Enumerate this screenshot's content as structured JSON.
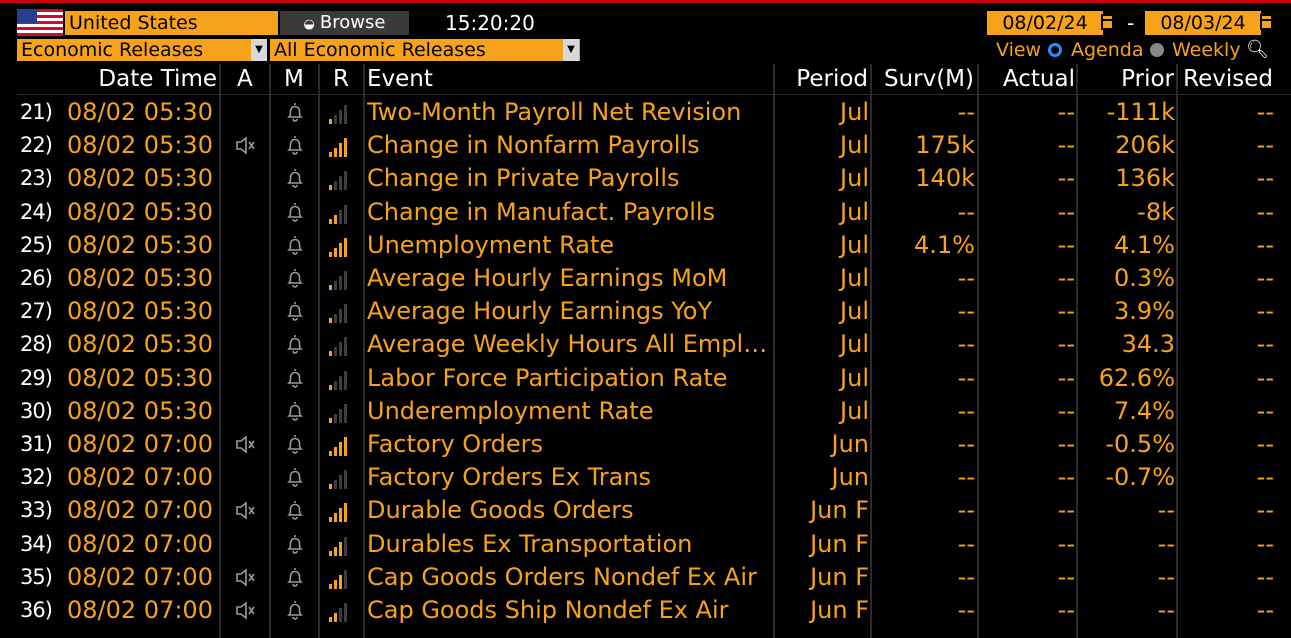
{
  "header": {
    "country": "United States",
    "browse_label": "Browse",
    "clock": "15:20:20",
    "start_date": "08/02/24",
    "range_dash": "-",
    "end_date": "08/03/24",
    "category_dropdown": "Economic Releases",
    "filter_dropdown": "All Economic Releases",
    "view_label": "View",
    "view_options": [
      "Agenda",
      "Weekly"
    ],
    "selected_view": "Agenda"
  },
  "columns": {
    "date_time": "Date Time",
    "alert": "A",
    "monitor": "M",
    "relevance": "R",
    "event": "Event",
    "period": "Period",
    "survey": "Surv(M)",
    "actual": "Actual",
    "prior": "Prior",
    "revised": "Revised"
  },
  "colors": {
    "accent": "#f7a21b",
    "background": "#000000",
    "selected_radio": "#2d8cff"
  },
  "rows": [
    {
      "num": "21)",
      "dt": "08/02 05:30",
      "speaker": false,
      "rel": 1,
      "event": "Two-Month Payroll Net Revision",
      "period": "Jul",
      "survey": "--",
      "actual": "--",
      "prior": "-111k",
      "revised": "--"
    },
    {
      "num": "22)",
      "dt": "08/02 05:30",
      "speaker": true,
      "rel": 4,
      "event": "Change in Nonfarm Payrolls",
      "period": "Jul",
      "survey": "175k",
      "actual": "--",
      "prior": "206k",
      "revised": "--"
    },
    {
      "num": "23)",
      "dt": "08/02 05:30",
      "speaker": false,
      "rel": 1,
      "event": "Change in Private Payrolls",
      "period": "Jul",
      "survey": "140k",
      "actual": "--",
      "prior": "136k",
      "revised": "--"
    },
    {
      "num": "24)",
      "dt": "08/02 05:30",
      "speaker": false,
      "rel": 2,
      "event": "Change in Manufact. Payrolls",
      "period": "Jul",
      "survey": "--",
      "actual": "--",
      "prior": "-8k",
      "revised": "--"
    },
    {
      "num": "25)",
      "dt": "08/02 05:30",
      "speaker": false,
      "rel": 4,
      "event": "Unemployment Rate",
      "period": "Jul",
      "survey": "4.1%",
      "actual": "--",
      "prior": "4.1%",
      "revised": "--"
    },
    {
      "num": "26)",
      "dt": "08/02 05:30",
      "speaker": false,
      "rel": 1,
      "event": "Average Hourly Earnings MoM",
      "period": "Jul",
      "survey": "--",
      "actual": "--",
      "prior": "0.3%",
      "revised": "--"
    },
    {
      "num": "27)",
      "dt": "08/02 05:30",
      "speaker": false,
      "rel": 1,
      "event": "Average Hourly Earnings YoY",
      "period": "Jul",
      "survey": "--",
      "actual": "--",
      "prior": "3.9%",
      "revised": "--"
    },
    {
      "num": "28)",
      "dt": "08/02 05:30",
      "speaker": false,
      "rel": 1,
      "event": "Average Weekly Hours All Empl…",
      "period": "Jul",
      "survey": "--",
      "actual": "--",
      "prior": "34.3",
      "revised": "--"
    },
    {
      "num": "29)",
      "dt": "08/02 05:30",
      "speaker": false,
      "rel": 1,
      "event": "Labor Force Participation Rate",
      "period": "Jul",
      "survey": "--",
      "actual": "--",
      "prior": "62.6%",
      "revised": "--"
    },
    {
      "num": "30)",
      "dt": "08/02 05:30",
      "speaker": false,
      "rel": 1,
      "event": "Underemployment Rate",
      "period": "Jul",
      "survey": "--",
      "actual": "--",
      "prior": "7.4%",
      "revised": "--"
    },
    {
      "num": "31)",
      "dt": "08/02 07:00",
      "speaker": true,
      "rel": 4,
      "event": "Factory Orders",
      "period": "Jun",
      "survey": "--",
      "actual": "--",
      "prior": "-0.5%",
      "revised": "--"
    },
    {
      "num": "32)",
      "dt": "08/02 07:00",
      "speaker": false,
      "rel": 1,
      "event": "Factory Orders Ex Trans",
      "period": "Jun",
      "survey": "--",
      "actual": "--",
      "prior": "-0.7%",
      "revised": "--"
    },
    {
      "num": "33)",
      "dt": "08/02 07:00",
      "speaker": true,
      "rel": 4,
      "event": "Durable Goods Orders",
      "period": "Jun F",
      "survey": "--",
      "actual": "--",
      "prior": "--",
      "revised": "--"
    },
    {
      "num": "34)",
      "dt": "08/02 07:00",
      "speaker": false,
      "rel": 3,
      "event": "Durables Ex Transportation",
      "period": "Jun F",
      "survey": "--",
      "actual": "--",
      "prior": "--",
      "revised": "--"
    },
    {
      "num": "35)",
      "dt": "08/02 07:00",
      "speaker": true,
      "rel": 3,
      "event": "Cap Goods Orders Nondef Ex Air",
      "period": "Jun F",
      "survey": "--",
      "actual": "--",
      "prior": "--",
      "revised": "--"
    },
    {
      "num": "36)",
      "dt": "08/02 07:00",
      "speaker": true,
      "rel": 2,
      "event": "Cap Goods Ship Nondef Ex Air",
      "period": "Jun F",
      "survey": "--",
      "actual": "--",
      "prior": "--",
      "revised": "--"
    }
  ]
}
